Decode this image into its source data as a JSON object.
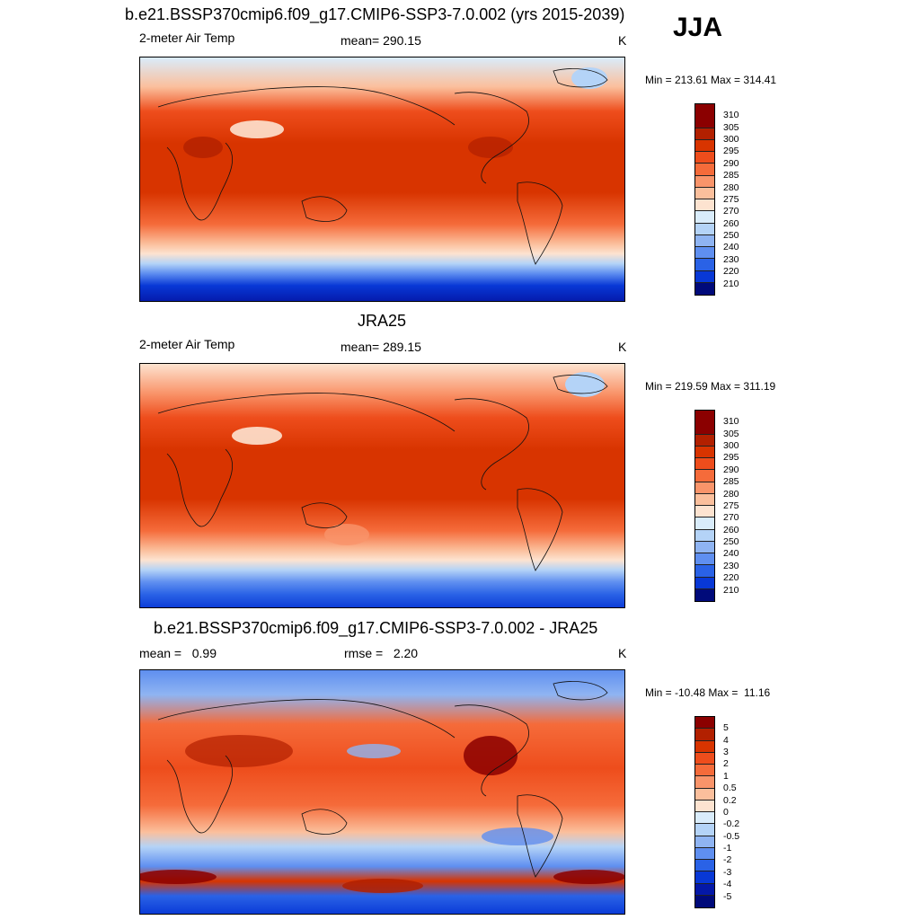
{
  "season": "JJA",
  "panels": [
    {
      "title": "b.e21.BSSP370cmip6.f09_g17.CMIP6-SSP3-7.0.002 (yrs 2015-2039)",
      "left_label": "2-meter Air Temp",
      "center_label": "mean= 290.15",
      "units": "K",
      "minmax": "Min = 213.61 Max = 314.41",
      "colorbar": {
        "labels": [
          "310",
          "305",
          "300",
          "295",
          "290",
          "285",
          "280",
          "275",
          "270",
          "260",
          "250",
          "240",
          "230",
          "220",
          "210"
        ],
        "colors": [
          "#8b0000",
          "#b22000",
          "#d83400",
          "#ee4d1c",
          "#f56b3a",
          "#f9946a",
          "#fbbf9c",
          "#fde3d0",
          "#d9ecfb",
          "#b4d3f7",
          "#8fb4f2",
          "#5f8ff0",
          "#2a62e6",
          "#0838d6",
          "#0418a8",
          "#000a7a"
        ]
      }
    },
    {
      "title": "JRA25",
      "left_label": "2-meter Air Temp",
      "center_label": "mean= 289.15",
      "units": "K",
      "minmax": "Min = 219.59 Max = 311.19",
      "colorbar": {
        "labels": [
          "310",
          "305",
          "300",
          "295",
          "290",
          "285",
          "280",
          "275",
          "270",
          "260",
          "250",
          "240",
          "230",
          "220",
          "210"
        ],
        "colors": [
          "#8b0000",
          "#b22000",
          "#d83400",
          "#ee4d1c",
          "#f56b3a",
          "#f9946a",
          "#fbbf9c",
          "#fde3d0",
          "#d9ecfb",
          "#b4d3f7",
          "#8fb4f2",
          "#5f8ff0",
          "#2a62e6",
          "#0838d6",
          "#0418a8",
          "#000a7a"
        ]
      }
    },
    {
      "title": "b.e21.BSSP370cmip6.f09_g17.CMIP6-SSP3-7.0.002 - JRA25",
      "left_label": "mean =   0.99",
      "center_label": "rmse =   2.20",
      "units": "K",
      "minmax": "Min = -10.48 Max =  11.16",
      "colorbar": {
        "labels": [
          "5",
          "4",
          "3",
          "2",
          "1",
          "0.5",
          "0.2",
          "0",
          "-0.2",
          "-0.5",
          "-1",
          "-2",
          "-3",
          "-4",
          "-5"
        ],
        "colors": [
          "#8b0000",
          "#b22000",
          "#d83400",
          "#ee4d1c",
          "#f56b3a",
          "#f9946a",
          "#fbbf9c",
          "#fde3d0",
          "#d9ecfb",
          "#b4d3f7",
          "#8fb4f2",
          "#5f8ff0",
          "#2a62e6",
          "#0838d6",
          "#0418a8",
          "#000a7a"
        ]
      }
    }
  ]
}
